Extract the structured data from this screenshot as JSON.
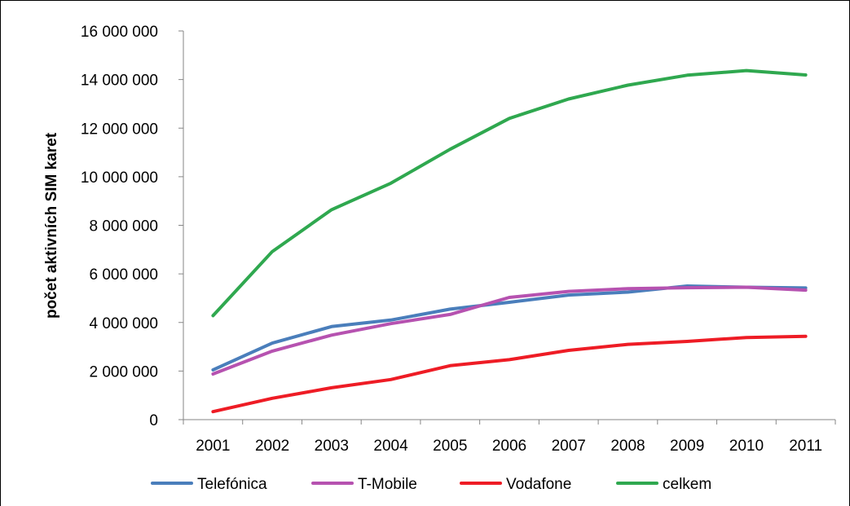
{
  "chart_data": {
    "type": "line",
    "title": "",
    "xlabel": "",
    "ylabel": "počet aktivních SIM karet",
    "categories": [
      "2001",
      "2002",
      "2003",
      "2004",
      "2005",
      "2006",
      "2007",
      "2008",
      "2009",
      "2010",
      "2011"
    ],
    "ylim": [
      0,
      16000000
    ],
    "yticks": [
      0,
      2000000,
      4000000,
      6000000,
      8000000,
      10000000,
      12000000,
      14000000,
      16000000
    ],
    "ytick_labels": [
      "0",
      "2 000 000",
      "4 000 000",
      "6 000 000",
      "8 000 000",
      "10 000 000",
      "12 000 000",
      "14 000 000",
      "16 000 000"
    ],
    "grid": false,
    "legend_position": "bottom",
    "series": [
      {
        "name": "Telefónica",
        "color": "#4a7ebb",
        "values": [
          2050000,
          3150000,
          3830000,
          4100000,
          4550000,
          4830000,
          5130000,
          5250000,
          5500000,
          5450000,
          5420000
        ]
      },
      {
        "name": "T-Mobile",
        "color": "#b652b0",
        "values": [
          1880000,
          2820000,
          3480000,
          3950000,
          4330000,
          5030000,
          5280000,
          5390000,
          5430000,
          5450000,
          5330000
        ]
      },
      {
        "name": "Vodafone",
        "color": "#ee1c25",
        "values": [
          330000,
          880000,
          1310000,
          1650000,
          2220000,
          2470000,
          2850000,
          3100000,
          3220000,
          3380000,
          3430000
        ]
      },
      {
        "name": "celkem",
        "color": "#2fa84f",
        "values": [
          4280000,
          6920000,
          8640000,
          9730000,
          11130000,
          12400000,
          13200000,
          13770000,
          14180000,
          14370000,
          14190000
        ]
      }
    ]
  }
}
